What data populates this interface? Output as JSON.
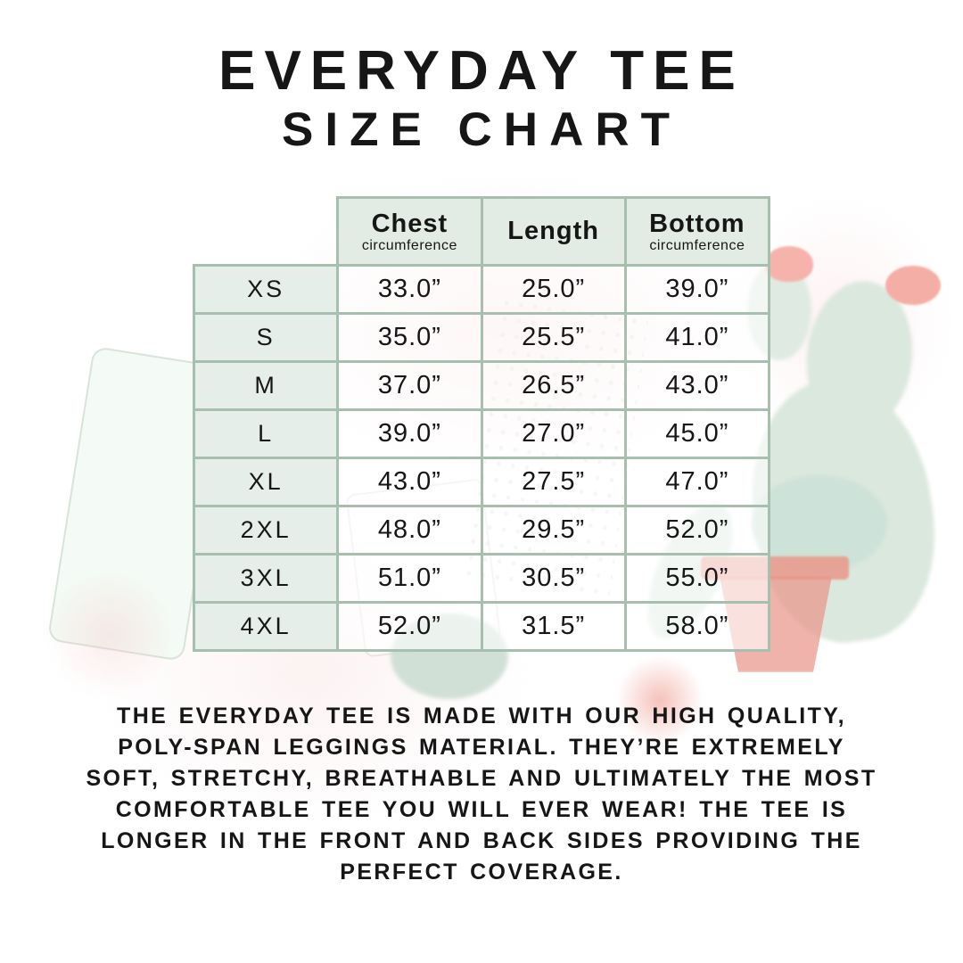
{
  "title": {
    "line1": "EVERYDAY TEE",
    "line2": "SIZE CHART"
  },
  "chart_data": {
    "type": "table",
    "title": "EVERYDAY TEE SIZE CHART",
    "columns": [
      {
        "label": "",
        "sub": ""
      },
      {
        "label": "Chest",
        "sub": "circumference"
      },
      {
        "label": "Length",
        "sub": ""
      },
      {
        "label": "Bottom",
        "sub": "circumference"
      }
    ],
    "rows": [
      {
        "size": "XS",
        "chest": "33.0”",
        "length": "25.0”",
        "bottom": "39.0”"
      },
      {
        "size": "S",
        "chest": "35.0”",
        "length": "25.5”",
        "bottom": "41.0”"
      },
      {
        "size": "M",
        "chest": "37.0”",
        "length": "26.5”",
        "bottom": "43.0”"
      },
      {
        "size": "L",
        "chest": "39.0”",
        "length": "27.0”",
        "bottom": "45.0”"
      },
      {
        "size": "XL",
        "chest": "43.0”",
        "length": "27.5”",
        "bottom": "47.0”"
      },
      {
        "size": "2XL",
        "chest": "48.0”",
        "length": "29.5”",
        "bottom": "52.0”"
      },
      {
        "size": "3XL",
        "chest": "51.0”",
        "length": "30.5”",
        "bottom": "55.0”"
      },
      {
        "size": "4XL",
        "chest": "52.0”",
        "length": "31.5”",
        "bottom": "58.0”"
      }
    ],
    "layout": {
      "grid": true,
      "header_row": true,
      "size_label_column": true
    }
  },
  "description": {
    "text": "THE EVERYDAY TEE IS MADE WITH OUR HIGH QUALITY, POLY-SPAN LEGGINGS MATERIAL. THEY’RE EXTREMELY SOFT, STRETCHY, BREATHABLE AND ULTIMATELY THE MOST COMFORTABLE TEE YOU WILL EVER WEAR! THE TEE IS LONGER IN THE FRONT AND BACK SIDES PROVIDING THE PERFECT COVERAGE."
  },
  "colors": {
    "ink": "#161616",
    "table_border": "#a6bfae",
    "header_fill": "#e2ece5",
    "size_column_fill": "#e5eee8",
    "watermark_pink": "#f7d9da",
    "watermark_green": "#dbe8de",
    "watermark_coral": "#eca99f"
  }
}
